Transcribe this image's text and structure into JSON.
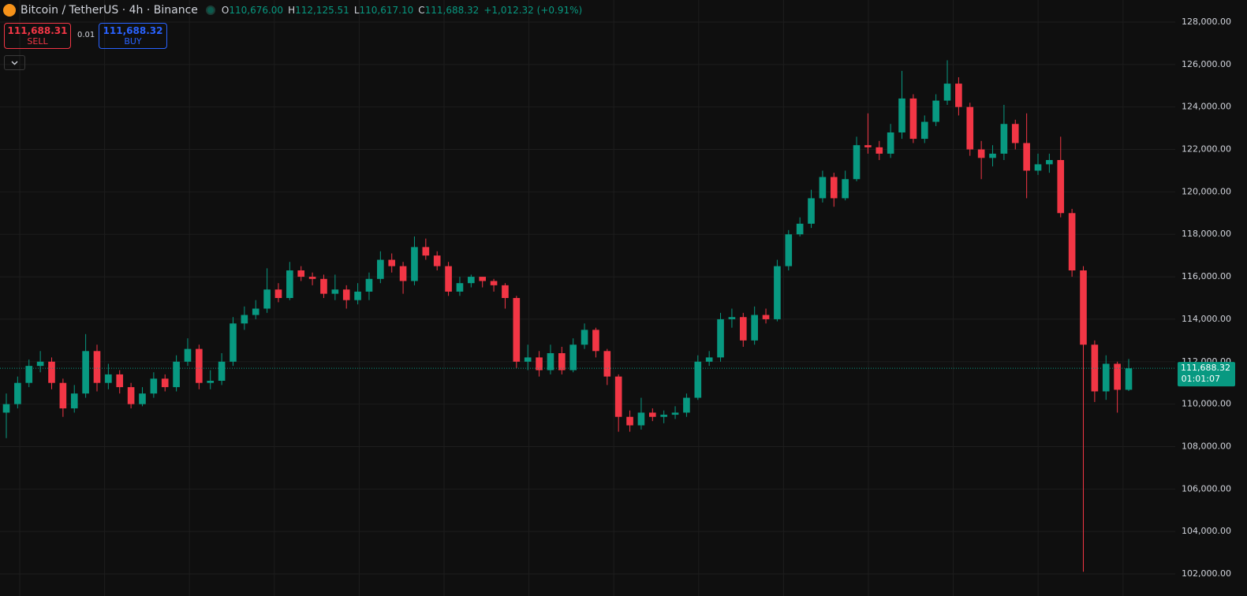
{
  "chart_data": {
    "type": "candlestick",
    "title": "Bitcoin / TetherUS · 4h · Binance",
    "ohlc_legend": [
      {
        "label": "O",
        "value": "110,676.00"
      },
      {
        "label": "H",
        "value": "112,125.51"
      },
      {
        "label": "L",
        "value": "110,617.10"
      },
      {
        "label": "C",
        "value": "111,688.32"
      }
    ],
    "change": "+1,012.32 (+0.91%)",
    "up_color": "#089981",
    "down_color": "#f23645",
    "grid": true,
    "open": [
      109600,
      110000,
      111000,
      111800,
      112000,
      111000,
      109800,
      110500,
      112500,
      111000,
      111400,
      110800,
      110000,
      110500,
      111200,
      110800,
      112000,
      112600,
      111000,
      111100,
      112000,
      113800,
      114200,
      114500,
      115400,
      115000,
      116300,
      116000,
      115900,
      115200,
      115400,
      114900,
      115300,
      115900,
      116800,
      116500,
      115800,
      117400,
      117000,
      116500,
      115300,
      115700,
      116000,
      115800,
      115600,
      115000,
      112000,
      112200,
      111600,
      112400,
      111600,
      112800,
      113500,
      112500,
      111300,
      109400,
      109000,
      109600,
      109400,
      109500,
      109600,
      110300,
      112000,
      112200,
      114000,
      114100,
      113000,
      114200,
      114000,
      116500,
      118000,
      118500,
      119700,
      120700,
      119700,
      120600,
      122200,
      122100,
      121800,
      122800,
      124400,
      122500,
      123300,
      124300,
      125100,
      124000,
      122000,
      121600,
      121800,
      123200,
      122300,
      121000,
      121300,
      121500,
      119000,
      116300,
      112800,
      110600,
      111900,
      110676
    ],
    "high": [
      110500,
      111300,
      112100,
      112500,
      112200,
      111200,
      110900,
      113300,
      112800,
      111900,
      111600,
      111000,
      110800,
      111500,
      111400,
      112300,
      113100,
      112800,
      111600,
      112400,
      114100,
      114600,
      114900,
      116400,
      115700,
      116700,
      116500,
      116200,
      116100,
      116100,
      115600,
      115700,
      116200,
      117200,
      117100,
      116700,
      117900,
      117800,
      117200,
      116700,
      116000,
      116100,
      116000,
      115900,
      115700,
      115100,
      112800,
      112500,
      112800,
      112700,
      113100,
      113800,
      113600,
      112600,
      111400,
      109700,
      110300,
      109800,
      109700,
      109900,
      110500,
      112300,
      112500,
      114300,
      114500,
      114300,
      114600,
      114500,
      116800,
      118200,
      118800,
      120100,
      121000,
      120900,
      121000,
      122600,
      123700,
      122400,
      123200,
      125700,
      124600,
      123600,
      124600,
      126200,
      125400,
      124200,
      122400,
      122200,
      124100,
      123400,
      123700,
      121800,
      121800,
      122600,
      119200,
      116500,
      113000,
      112300,
      112000,
      112125.51
    ],
    "low": [
      108400,
      109800,
      110800,
      111500,
      110700,
      109400,
      109600,
      110300,
      110600,
      110700,
      110500,
      109800,
      109900,
      110300,
      110600,
      110600,
      111800,
      110700,
      110700,
      110900,
      111800,
      113500,
      114000,
      114300,
      114800,
      114900,
      115800,
      115600,
      115000,
      114900,
      114500,
      114700,
      114900,
      115700,
      116200,
      115200,
      115600,
      116800,
      116300,
      115100,
      115100,
      115500,
      115500,
      115300,
      114500,
      111700,
      111600,
      111300,
      111400,
      111400,
      111500,
      112600,
      112200,
      110900,
      108700,
      108700,
      108800,
      109200,
      109100,
      109300,
      109400,
      110200,
      111800,
      112000,
      113600,
      112700,
      112800,
      113800,
      113900,
      116300,
      117900,
      118300,
      119500,
      119300,
      119600,
      120500,
      121800,
      121500,
      121600,
      122500,
      122300,
      122300,
      123100,
      124100,
      123600,
      121700,
      120600,
      121200,
      121500,
      122000,
      119700,
      120800,
      120900,
      118800,
      116000,
      102100,
      110100,
      110200,
      109600,
      110617.1
    ],
    "close": [
      110000,
      111000,
      111800,
      112000,
      111000,
      109800,
      110500,
      112500,
      111000,
      111400,
      110800,
      110000,
      110500,
      111200,
      110800,
      112000,
      112600,
      111000,
      111100,
      112000,
      113800,
      114200,
      114500,
      115400,
      115000,
      116300,
      116000,
      115900,
      115200,
      115400,
      114900,
      115300,
      115900,
      116800,
      116500,
      115800,
      117400,
      117000,
      116500,
      115300,
      115700,
      116000,
      115800,
      115600,
      115000,
      112000,
      112200,
      111600,
      112400,
      111600,
      112800,
      113500,
      112500,
      111300,
      109400,
      109000,
      109600,
      109400,
      109500,
      109600,
      110300,
      112000,
      112200,
      114000,
      114100,
      113000,
      114200,
      114000,
      116500,
      118000,
      118500,
      119700,
      120700,
      119700,
      120600,
      122200,
      122100,
      121800,
      122800,
      124400,
      122500,
      123300,
      124300,
      125100,
      124000,
      122000,
      121600,
      121800,
      123200,
      122300,
      121000,
      121300,
      121500,
      119000,
      116300,
      112800,
      110600,
      111900,
      110676,
      111688.32
    ],
    "ylim": [
      100960,
      129040
    ],
    "yticks": [
      {
        "value": 102000,
        "label": "102,000.00"
      },
      {
        "value": 104000,
        "label": "104,000.00"
      },
      {
        "value": 106000,
        "label": "106,000.00"
      },
      {
        "value": 108000,
        "label": "108,000.00"
      },
      {
        "value": 110000,
        "label": "110,000.00"
      },
      {
        "value": 112000,
        "label": "112,000.00"
      },
      {
        "value": 114000,
        "label": "114,000.00"
      },
      {
        "value": 116000,
        "label": "116,000.00"
      },
      {
        "value": 118000,
        "label": "118,000.00"
      },
      {
        "value": 120000,
        "label": "120,000.00"
      },
      {
        "value": 122000,
        "label": "122,000.00"
      },
      {
        "value": 124000,
        "label": "124,000.00"
      },
      {
        "value": 126000,
        "label": "126,000.00"
      },
      {
        "value": 128000,
        "label": "128,000.00"
      }
    ],
    "last_price": {
      "value": 111688.32,
      "label": "111,688.32"
    },
    "countdown": "01:01:07"
  },
  "trade_panel": {
    "sell_price": "111,688.31",
    "sell_label": "SELL",
    "quantity": "0.01",
    "buy_price": "111,688.32",
    "buy_label": "BUY"
  }
}
